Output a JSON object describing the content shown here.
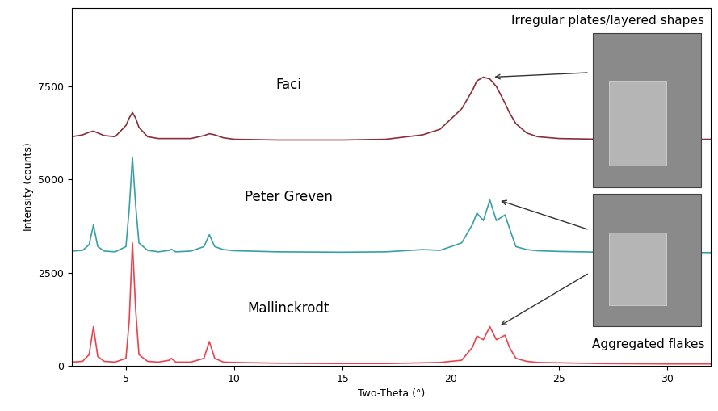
{
  "chart_data": {
    "type": "line",
    "x_label": "Two-Theta (°)",
    "y_label": "Intensity (counts)",
    "x": [
      2.5,
      3.0,
      3.3,
      3.5,
      3.7,
      4.0,
      4.5,
      5.0,
      5.15,
      5.3,
      5.45,
      5.6,
      6.0,
      6.5,
      7.0,
      7.1,
      7.3,
      8.0,
      8.6,
      8.85,
      9.1,
      9.5,
      10,
      12,
      15,
      17,
      18.7,
      19.5,
      20.5,
      21.0,
      21.2,
      21.5,
      21.8,
      22.1,
      22.5,
      22.7,
      23.0,
      23.5,
      24,
      25,
      27,
      30,
      32
    ],
    "series": [
      {
        "name": "Faci",
        "color": "#8b2e3a",
        "values": [
          6150,
          6200,
          6270,
          6300,
          6250,
          6180,
          6150,
          6450,
          6650,
          6800,
          6650,
          6400,
          6150,
          6100,
          6100,
          6100,
          6100,
          6100,
          6180,
          6230,
          6200,
          6120,
          6080,
          6060,
          6060,
          6080,
          6200,
          6350,
          6900,
          7400,
          7650,
          7750,
          7700,
          7500,
          7050,
          6800,
          6500,
          6250,
          6150,
          6100,
          6080,
          6080,
          6080
        ]
      },
      {
        "name": "Peter Greven",
        "color": "#3a9ea5",
        "values": [
          3080,
          3100,
          3250,
          3780,
          3200,
          3080,
          3060,
          3200,
          4200,
          5600,
          4300,
          3300,
          3100,
          3060,
          3100,
          3130,
          3060,
          3080,
          3200,
          3520,
          3200,
          3120,
          3090,
          3060,
          3050,
          3060,
          3120,
          3100,
          3300,
          3800,
          4100,
          3900,
          4450,
          3900,
          4050,
          3700,
          3200,
          3120,
          3090,
          3070,
          3050,
          3040,
          3040
        ]
      },
      {
        "name": "Mallinckrodt",
        "color": "#e8434e",
        "values": [
          100,
          120,
          300,
          1050,
          250,
          120,
          100,
          200,
          1200,
          3300,
          1500,
          300,
          120,
          100,
          150,
          200,
          100,
          100,
          200,
          650,
          200,
          100,
          90,
          70,
          60,
          60,
          80,
          90,
          150,
          500,
          800,
          700,
          1050,
          700,
          820,
          500,
          200,
          120,
          90,
          80,
          60,
          50,
          50
        ]
      }
    ],
    "annotations": [
      "Irregular plates/layered shapes",
      "Aggregated flakes"
    ],
    "xlim": [
      2.5,
      32
    ],
    "xticks": [
      5,
      10,
      15,
      20,
      25,
      30
    ],
    "ylim": [
      0,
      9600
    ],
    "yticks": [
      0,
      2500,
      5000,
      7500
    ],
    "grid": false
  }
}
